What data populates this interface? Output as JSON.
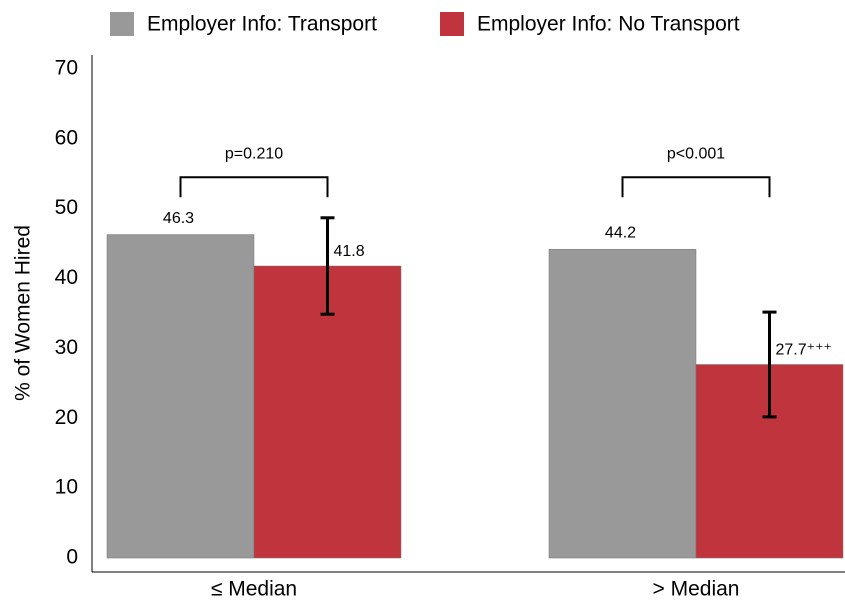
{
  "chart_data": {
    "type": "bar",
    "ylabel": "% of Women Hired",
    "categories": [
      "≤ Median",
      "> Median"
    ],
    "series": [
      {
        "name": "Employer Info: Transport",
        "color": "#999999",
        "values": [
          46.3,
          44.2
        ]
      },
      {
        "name": "Employer Info: No Transport",
        "color": "#c0343e",
        "values": [
          41.8,
          27.7
        ],
        "value_labels": [
          "41.8",
          "27.7⁺⁺⁺"
        ],
        "errors": [
          6.9,
          7.5
        ]
      }
    ],
    "annotations": [
      "p=0.210",
      "p<0.001"
    ],
    "ylim": [
      -2,
      72
    ],
    "yticks": [
      0,
      10,
      20,
      30,
      40,
      50,
      60,
      70
    ],
    "grid": false,
    "legend": "top"
  }
}
